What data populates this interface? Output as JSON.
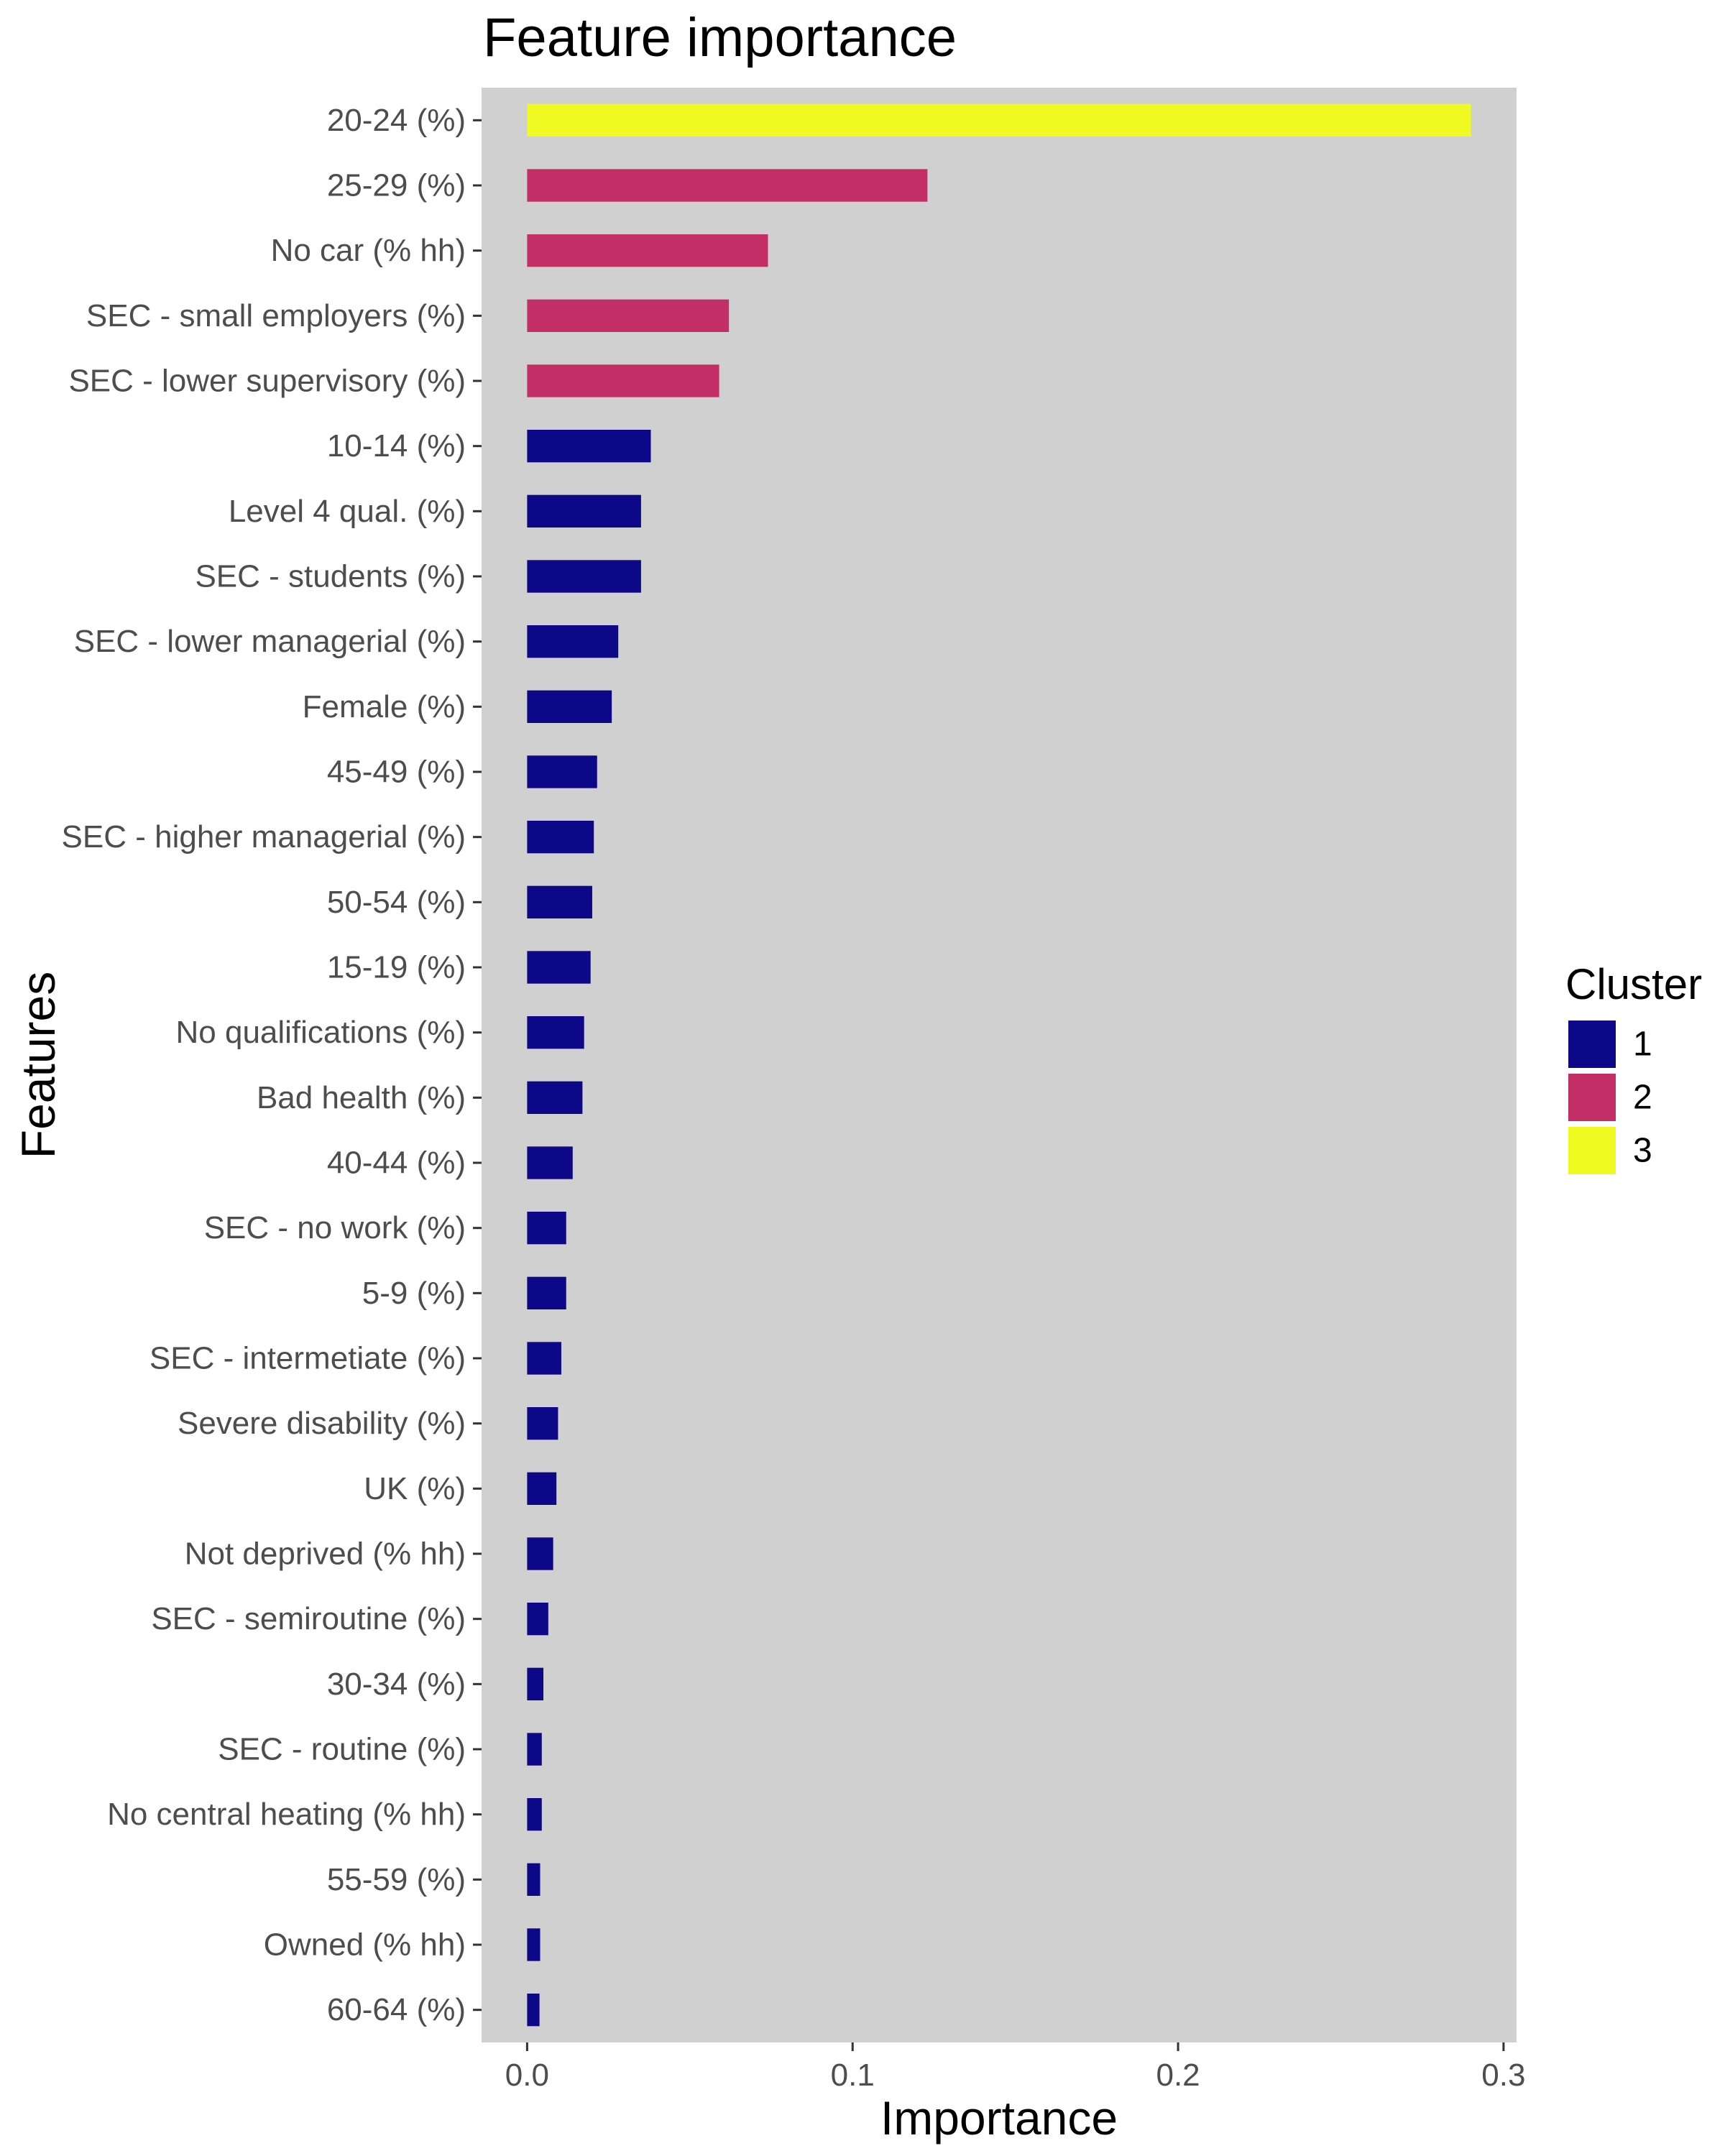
{
  "chart_data": {
    "type": "bar",
    "orientation": "horizontal",
    "title": "Feature importance",
    "xlabel": "Importance",
    "ylabel": "Features",
    "xlim": [
      -0.014,
      0.304
    ],
    "x_ticks": [
      0.0,
      0.1,
      0.2,
      0.3
    ],
    "x_tick_labels": [
      "0.0",
      "0.1",
      "0.2",
      "0.3"
    ],
    "grid": false,
    "legend": {
      "title": "Cluster",
      "placement": "right",
      "entries": [
        {
          "label": "1",
          "color": "#0d0887"
        },
        {
          "label": "2",
          "color": "#c42e67"
        },
        {
          "label": "3",
          "color": "#f0f921"
        }
      ]
    },
    "panel_color": "#d0d0d0",
    "bars": [
      {
        "feature": "20-24 (%)",
        "value": 0.29,
        "cluster": "3"
      },
      {
        "feature": "25-29 (%)",
        "value": 0.123,
        "cluster": "2"
      },
      {
        "feature": "No car (% hh)",
        "value": 0.074,
        "cluster": "2"
      },
      {
        "feature": "SEC - small employers (%)",
        "value": 0.062,
        "cluster": "2"
      },
      {
        "feature": "SEC - lower supervisory (%)",
        "value": 0.059,
        "cluster": "2"
      },
      {
        "feature": "10-14 (%)",
        "value": 0.038,
        "cluster": "1"
      },
      {
        "feature": "Level 4 qual. (%)",
        "value": 0.035,
        "cluster": "1"
      },
      {
        "feature": "SEC - students (%)",
        "value": 0.035,
        "cluster": "1"
      },
      {
        "feature": "SEC - lower managerial (%)",
        "value": 0.028,
        "cluster": "1"
      },
      {
        "feature": "Female (%)",
        "value": 0.026,
        "cluster": "1"
      },
      {
        "feature": "45-49 (%)",
        "value": 0.0215,
        "cluster": "1"
      },
      {
        "feature": "SEC - higher managerial (%)",
        "value": 0.0205,
        "cluster": "1"
      },
      {
        "feature": "50-54 (%)",
        "value": 0.02,
        "cluster": "1"
      },
      {
        "feature": "15-19 (%)",
        "value": 0.0195,
        "cluster": "1"
      },
      {
        "feature": "No qualifications (%)",
        "value": 0.0175,
        "cluster": "1"
      },
      {
        "feature": "Bad health (%)",
        "value": 0.017,
        "cluster": "1"
      },
      {
        "feature": "40-44 (%)",
        "value": 0.014,
        "cluster": "1"
      },
      {
        "feature": "SEC - no work (%)",
        "value": 0.012,
        "cluster": "1"
      },
      {
        "feature": "5-9 (%)",
        "value": 0.012,
        "cluster": "1"
      },
      {
        "feature": "SEC - intermetiate (%)",
        "value": 0.0105,
        "cluster": "1"
      },
      {
        "feature": "Severe disability (%)",
        "value": 0.0095,
        "cluster": "1"
      },
      {
        "feature": "UK (%)",
        "value": 0.009,
        "cluster": "1"
      },
      {
        "feature": "Not deprived (% hh)",
        "value": 0.008,
        "cluster": "1"
      },
      {
        "feature": "SEC - semiroutine (%)",
        "value": 0.0065,
        "cluster": "1"
      },
      {
        "feature": "30-34 (%)",
        "value": 0.005,
        "cluster": "1"
      },
      {
        "feature": "SEC - routine (%)",
        "value": 0.0045,
        "cluster": "1"
      },
      {
        "feature": "No central heating (% hh)",
        "value": 0.0045,
        "cluster": "1"
      },
      {
        "feature": "55-59 (%)",
        "value": 0.004,
        "cluster": "1"
      },
      {
        "feature": "Owned (% hh)",
        "value": 0.004,
        "cluster": "1"
      },
      {
        "feature": "60-64 (%)",
        "value": 0.0038,
        "cluster": "1"
      }
    ]
  }
}
